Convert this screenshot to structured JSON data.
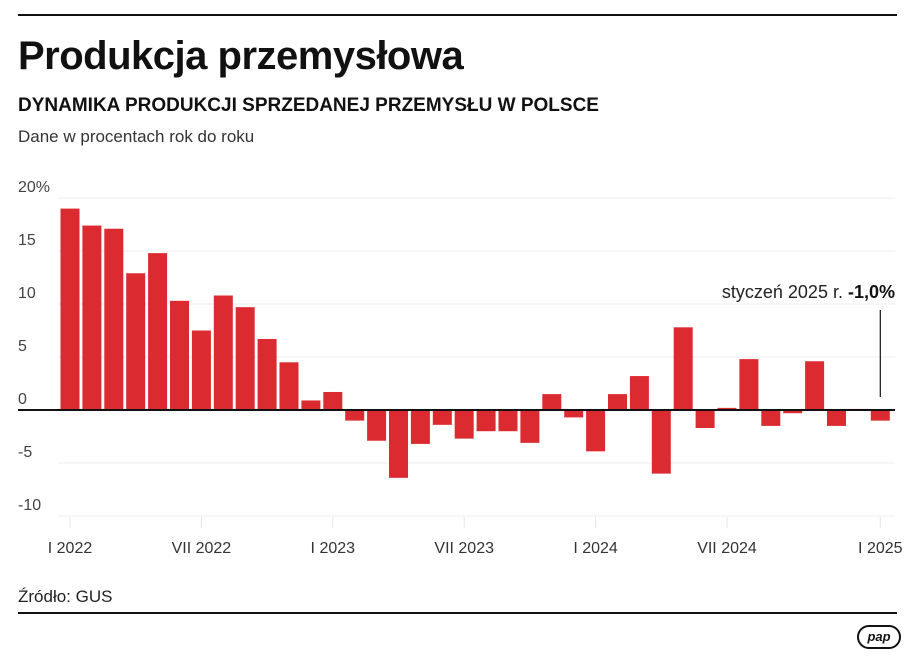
{
  "header": {
    "title": "Produkcja przemysłowa",
    "subtitle": "DYNAMIKA PRODUKCJI SPRZEDANEJ PRZEMYSŁU W POLSCE",
    "description": "Dane w procentach rok do roku"
  },
  "footer": {
    "source": "Źródło: GUS",
    "logo": "pap"
  },
  "chart_data": {
    "type": "bar",
    "ylim": [
      -10,
      20
    ],
    "grid": true,
    "y_ticks": [
      {
        "value": 20,
        "label": "20%"
      },
      {
        "value": 15,
        "label": "15"
      },
      {
        "value": 10,
        "label": "10"
      },
      {
        "value": 5,
        "label": "5"
      },
      {
        "value": 0,
        "label": "0"
      },
      {
        "value": -5,
        "label": "-5"
      },
      {
        "value": -10,
        "label": "-10"
      }
    ],
    "x_ticks": [
      {
        "index": 0,
        "label": "I 2022"
      },
      {
        "index": 6,
        "label": "VII 2022"
      },
      {
        "index": 12,
        "label": "I 2023"
      },
      {
        "index": 18,
        "label": "VII 2023"
      },
      {
        "index": 24,
        "label": "I 2024"
      },
      {
        "index": 30,
        "label": "VII 2024"
      },
      {
        "index": 37,
        "label": "I 2025"
      }
    ],
    "values": [
      19.0,
      17.4,
      17.1,
      12.9,
      14.8,
      10.3,
      7.5,
      10.8,
      9.7,
      6.7,
      4.5,
      0.9,
      1.7,
      -1.0,
      -2.9,
      -6.4,
      -3.2,
      -1.4,
      -2.7,
      -2.0,
      -2.0,
      -3.1,
      1.5,
      -0.7,
      -3.9,
      1.5,
      3.2,
      -6.0,
      7.8,
      -1.7,
      0.2,
      4.8,
      -1.5,
      -0.3,
      4.6,
      -1.5,
      0.1,
      -1.0
    ],
    "bar_color": "#dc2a31",
    "annotation": {
      "index": 37,
      "text": "styczeń 2025 r. ",
      "value_text": "-1,0%"
    }
  }
}
